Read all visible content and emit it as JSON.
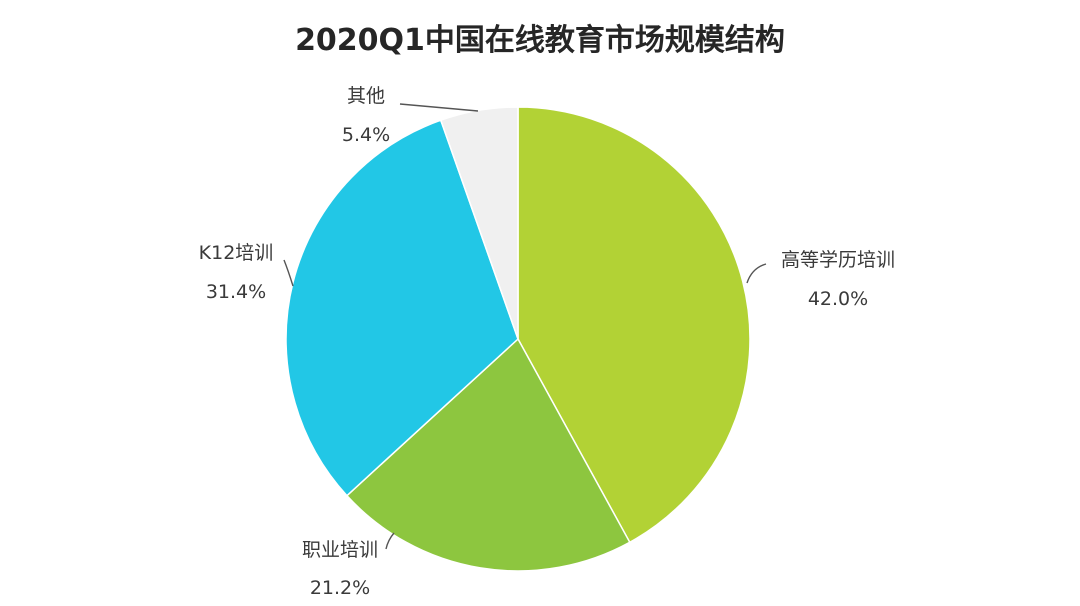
{
  "chart_data": {
    "type": "pie",
    "title": "2020Q1中国在线教育市场规模结构",
    "slices": [
      {
        "name": "高等学历培训",
        "value": 42.0,
        "label": "42.0%",
        "color": "#b2d235"
      },
      {
        "name": "职业培训",
        "value": 21.2,
        "label": "21.2%",
        "color": "#8dc63f"
      },
      {
        "name": "K12培训",
        "value": 31.4,
        "label": "31.4%",
        "color": "#22c7e6"
      },
      {
        "name": "其他",
        "value": 5.4,
        "label": "5.4%",
        "color": "#f0f0f0"
      }
    ],
    "start_angle": "12 o'clock",
    "direction": "clockwise",
    "legend": "none"
  }
}
